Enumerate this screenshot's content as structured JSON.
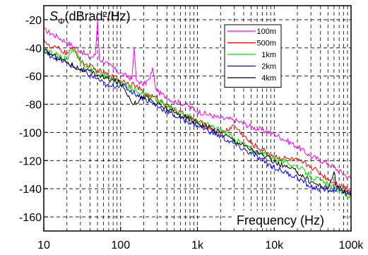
{
  "chart_data": {
    "type": "line",
    "ylabel_symbol": "S",
    "ylabel_subscript": "Φ",
    "ylabel_rest": "(dBrad²/Hz)",
    "xlabel": "Frequency (Hz)",
    "x_scale": "log",
    "xlim": [
      10,
      100000
    ],
    "ylim": [
      -170,
      -10
    ],
    "x_ticks": [
      10,
      100,
      1000,
      10000,
      100000
    ],
    "x_tick_labels": [
      "10",
      "100",
      "1k",
      "10k",
      "100k"
    ],
    "y_ticks": [
      -20,
      -40,
      -60,
      -80,
      -100,
      -120,
      -140,
      -160
    ],
    "y_tick_labels": [
      "-20",
      "-40",
      "-60",
      "-80",
      "-100",
      "-120",
      "-140",
      "-160"
    ],
    "grid": true,
    "legend_position": "top-right",
    "series": [
      {
        "name": "100m",
        "color": "#ff00ff",
        "points": [
          [
            10,
            -27
          ],
          [
            15,
            -32
          ],
          [
            20,
            -36
          ],
          [
            30,
            -42
          ],
          [
            40,
            -47
          ],
          [
            47,
            -45
          ],
          [
            50,
            -20
          ],
          [
            53,
            -48
          ],
          [
            70,
            -52
          ],
          [
            100,
            -58
          ],
          [
            140,
            -62
          ],
          [
            150,
            -40
          ],
          [
            160,
            -63
          ],
          [
            200,
            -66
          ],
          [
            240,
            -62
          ],
          [
            260,
            -54
          ],
          [
            280,
            -66
          ],
          [
            300,
            -71
          ],
          [
            500,
            -78
          ],
          [
            700,
            -80
          ],
          [
            1000,
            -85
          ],
          [
            2000,
            -90
          ],
          [
            3000,
            -91
          ],
          [
            5000,
            -96
          ],
          [
            10000,
            -101
          ],
          [
            20000,
            -110
          ],
          [
            30000,
            -117
          ],
          [
            50000,
            -122
          ],
          [
            100000,
            -133
          ]
        ]
      },
      {
        "name": "500m",
        "color": "#ff0000",
        "points": [
          [
            10,
            -33
          ],
          [
            12,
            -40
          ],
          [
            15,
            -40
          ],
          [
            20,
            -44
          ],
          [
            25,
            -40
          ],
          [
            30,
            -50
          ],
          [
            50,
            -56
          ],
          [
            100,
            -63
          ],
          [
            150,
            -66
          ],
          [
            200,
            -72
          ],
          [
            300,
            -76
          ],
          [
            500,
            -84
          ],
          [
            1000,
            -92
          ],
          [
            2000,
            -101
          ],
          [
            3000,
            -95
          ],
          [
            5000,
            -108
          ],
          [
            10000,
            -117
          ],
          [
            20000,
            -120
          ],
          [
            30000,
            -124
          ],
          [
            50000,
            -133
          ],
          [
            100000,
            -141
          ]
        ]
      },
      {
        "name": "1km",
        "color": "#00e000",
        "points": [
          [
            10,
            -42
          ],
          [
            15,
            -45
          ],
          [
            20,
            -48
          ],
          [
            25,
            -40
          ],
          [
            30,
            -50
          ],
          [
            50,
            -57
          ],
          [
            100,
            -65
          ],
          [
            200,
            -72
          ],
          [
            300,
            -77
          ],
          [
            500,
            -84
          ],
          [
            1000,
            -92
          ],
          [
            2000,
            -98
          ],
          [
            3000,
            -104
          ],
          [
            5000,
            -112
          ],
          [
            10000,
            -118
          ],
          [
            20000,
            -124
          ],
          [
            30000,
            -131
          ],
          [
            50000,
            -137
          ],
          [
            100000,
            -146
          ]
        ]
      },
      {
        "name": "2km",
        "color": "#0000ff",
        "points": [
          [
            10,
            -43
          ],
          [
            20,
            -51
          ],
          [
            30,
            -56
          ],
          [
            50,
            -62
          ],
          [
            70,
            -68
          ],
          [
            100,
            -66
          ],
          [
            200,
            -76
          ],
          [
            500,
            -88
          ],
          [
            1000,
            -95
          ],
          [
            2000,
            -103
          ],
          [
            5000,
            -115
          ],
          [
            10000,
            -125
          ],
          [
            20000,
            -132
          ],
          [
            30000,
            -139
          ],
          [
            50000,
            -141
          ],
          [
            70000,
            -140
          ],
          [
            100000,
            -144
          ]
        ]
      },
      {
        "name": "4km",
        "color": "#000000",
        "points": [
          [
            10,
            -42
          ],
          [
            20,
            -50
          ],
          [
            30,
            -55
          ],
          [
            50,
            -59
          ],
          [
            60,
            -61
          ],
          [
            100,
            -65
          ],
          [
            150,
            -80
          ],
          [
            200,
            -74
          ],
          [
            300,
            -80
          ],
          [
            500,
            -86
          ],
          [
            1000,
            -93
          ],
          [
            2000,
            -100
          ],
          [
            5000,
            -112
          ],
          [
            10000,
            -121
          ],
          [
            20000,
            -128
          ],
          [
            30000,
            -135
          ],
          [
            50000,
            -140
          ],
          [
            60000,
            -128
          ],
          [
            65000,
            -139
          ],
          [
            100000,
            -145
          ]
        ]
      }
    ]
  }
}
